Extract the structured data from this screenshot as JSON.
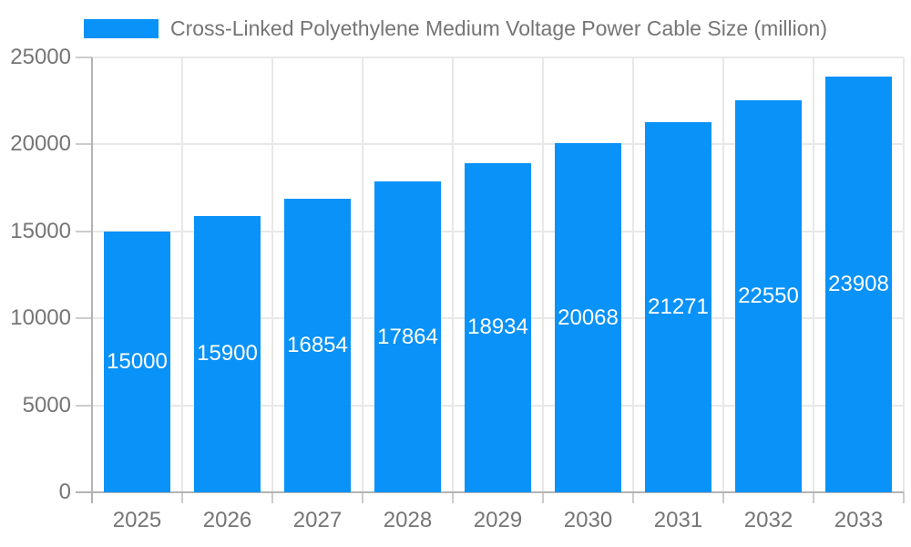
{
  "page": {
    "background": "#ffffff"
  },
  "legend": {
    "label": "Cross-Linked Polyethylene Medium Voltage Power Cable Size (million)",
    "swatch_color": "#0992f8"
  },
  "chart_data": {
    "type": "bar",
    "title": "Cross-Linked Polyethylene Medium Voltage Power Cable Size (million)",
    "categories": [
      "2025",
      "2026",
      "2027",
      "2028",
      "2029",
      "2030",
      "2031",
      "2032",
      "2033"
    ],
    "series": [
      {
        "name": "Cross-Linked Polyethylene Medium Voltage Power Cable Size (million)",
        "values": [
          15000,
          15900,
          16854,
          17864,
          18934,
          20068,
          21271,
          22550,
          23908
        ]
      }
    ],
    "xlabel": "",
    "ylabel": "",
    "ylim": [
      0,
      25000
    ],
    "yticks": [
      0,
      5000,
      10000,
      15000,
      20000,
      25000
    ],
    "grid": true,
    "legend_position": "top-center",
    "bar_color": "#0992f8",
    "bar_label_color": "#ffffff",
    "axis_text_color": "#757575",
    "gridline_color": "#e8e8e8",
    "axis_line_color": "#b3b3b3"
  }
}
